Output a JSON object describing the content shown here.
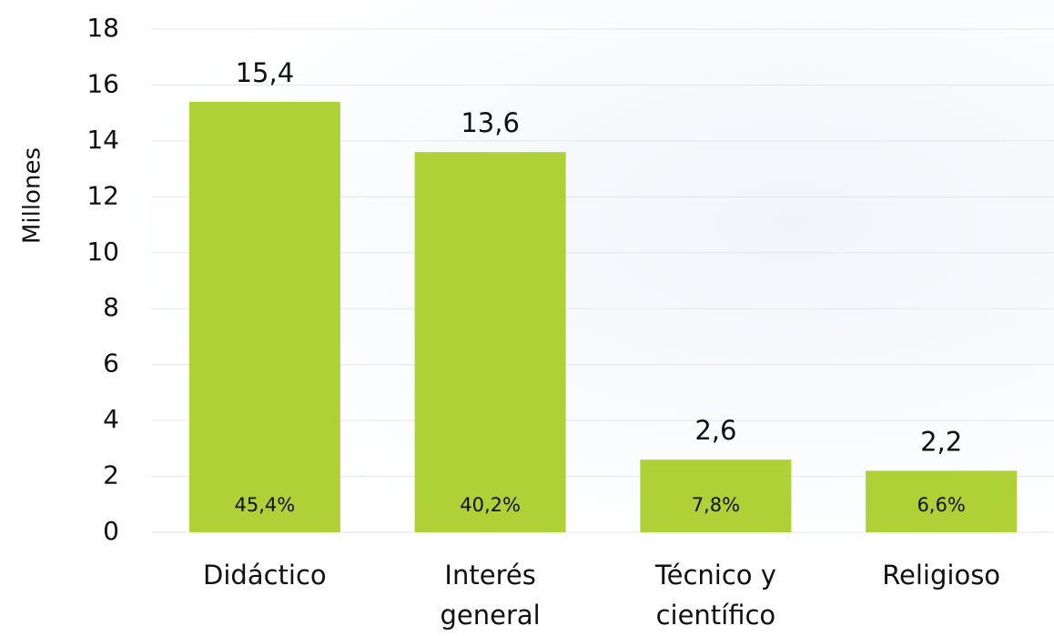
{
  "chart_data": {
    "type": "bar",
    "y_axis_label": "Millones",
    "categories": [
      "Didáctico",
      "Interés general",
      "Técnico y científico",
      "Religioso"
    ],
    "values": [
      15.4,
      13.6,
      2.6,
      2.2
    ],
    "value_labels": [
      "15,4",
      "13,6",
      "2,6",
      "2,2"
    ],
    "shares": [
      45.4,
      40.2,
      7.8,
      6.6
    ],
    "share_labels": [
      "45,4%",
      "40,2%",
      "7,8%",
      "6,6%"
    ],
    "color": "#add136",
    "ylim": [
      0,
      18
    ],
    "yticks": [
      0,
      2,
      4,
      6,
      8,
      10,
      12,
      14,
      16,
      18
    ],
    "grid": true
  }
}
